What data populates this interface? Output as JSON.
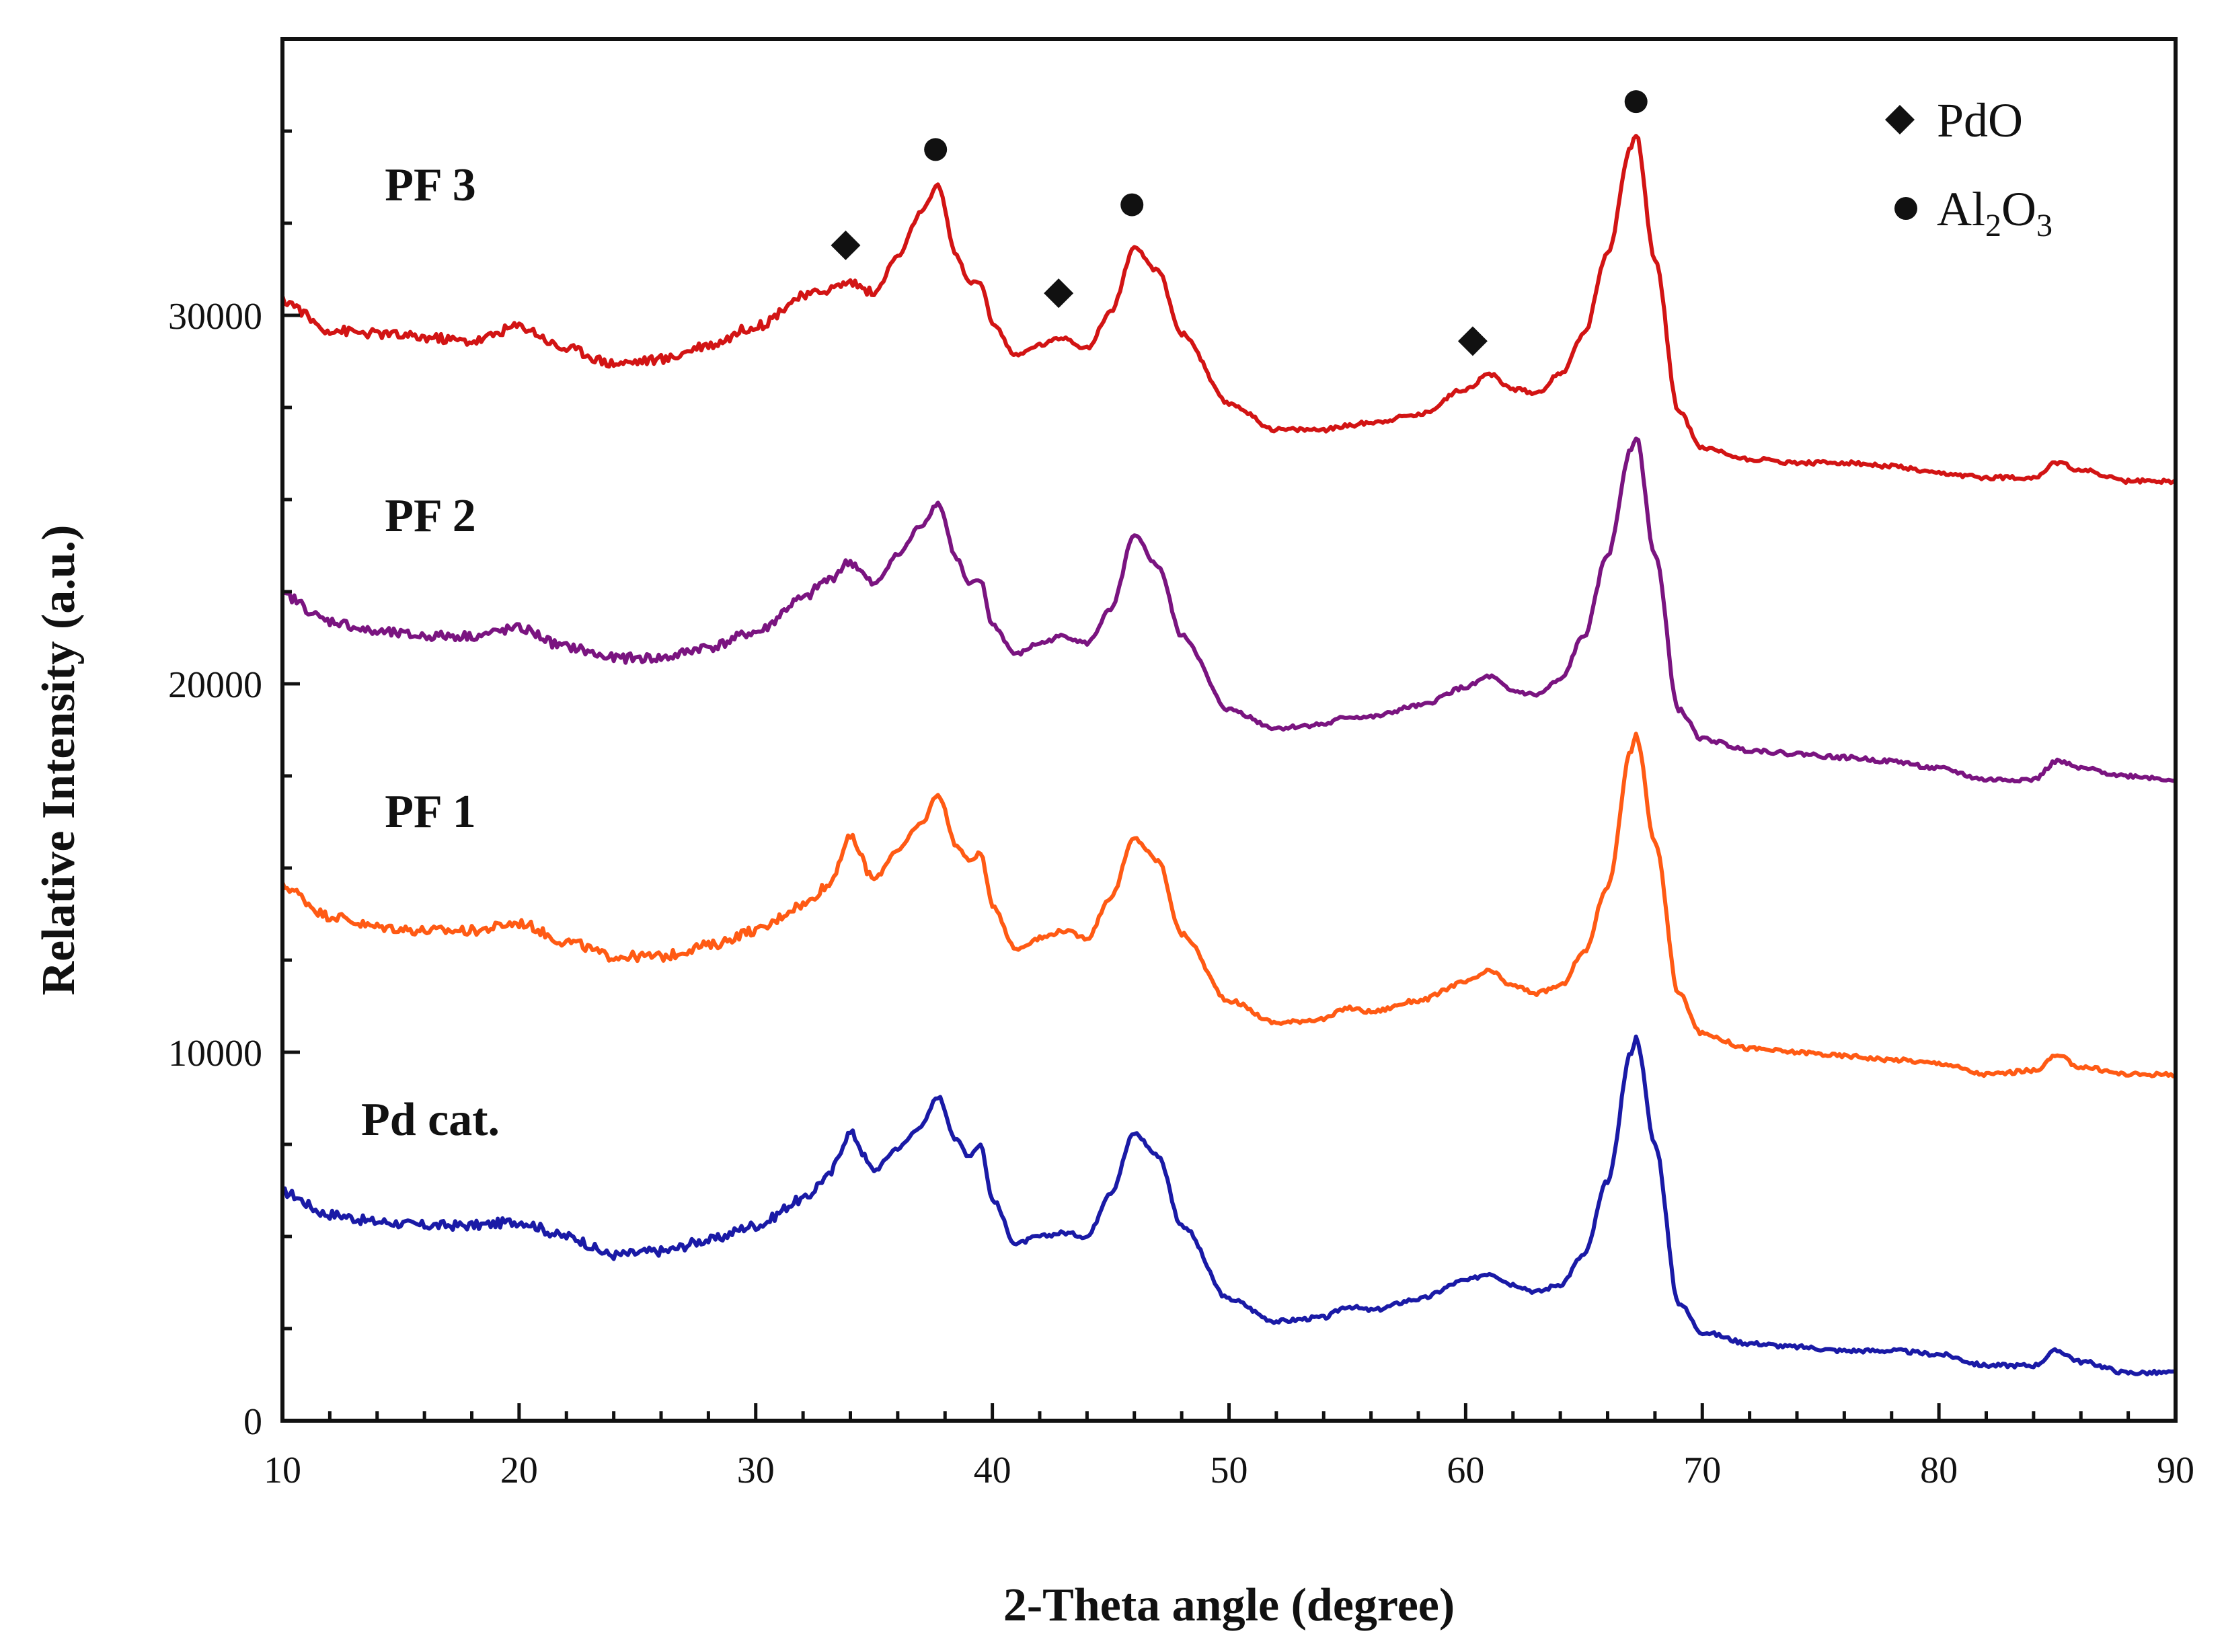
{
  "chart_data": {
    "type": "line",
    "title": "",
    "xlabel": "2-Theta angle (degree)",
    "ylabel": "Relative Intensity (a.u.)",
    "xlim": [
      10,
      90
    ],
    "ylim": [
      0,
      37500
    ],
    "xticks": [
      10,
      20,
      30,
      40,
      50,
      60,
      70,
      80,
      90
    ],
    "yticks": [
      0,
      10000,
      20000,
      30000
    ],
    "grid": false,
    "legend_position": "top-right",
    "legend": [
      {
        "marker": "diamond",
        "label": "PdO"
      },
      {
        "marker": "circle",
        "label": "Al",
        "sub1": "2",
        "mid": "O",
        "sub2": "3"
      }
    ],
    "series": [
      {
        "name": "Pd cat.",
        "color": "#1a1aa6",
        "x": [
          10,
          12,
          14,
          16,
          18,
          20,
          22,
          24,
          26,
          28,
          30,
          32,
          33,
          34,
          35,
          36,
          37,
          37.7,
          38.5,
          39,
          39.5,
          40,
          41,
          42,
          43,
          44,
          45,
          46,
          47,
          48,
          50,
          52,
          54,
          55,
          56,
          58,
          60,
          61,
          62,
          63,
          64,
          65,
          66,
          67,
          67.2,
          68,
          69,
          70,
          72,
          74,
          76,
          78,
          80,
          82,
          84,
          85,
          86,
          88,
          90
        ],
        "y": [
          6200,
          5600,
          5400,
          5300,
          5300,
          5400,
          5000,
          4500,
          4600,
          4900,
          5300,
          6000,
          6600,
          7800,
          6800,
          7400,
          8000,
          8800,
          7600,
          7200,
          7500,
          6000,
          4800,
          5000,
          5100,
          5000,
          6200,
          7800,
          7200,
          5300,
          3300,
          2700,
          2800,
          3100,
          3000,
          3300,
          3800,
          4000,
          3700,
          3500,
          3700,
          4500,
          6500,
          10000,
          10400,
          7500,
          3200,
          2400,
          2100,
          2000,
          1900,
          1900,
          1800,
          1500,
          1500,
          1900,
          1600,
          1300,
          1300
        ]
      },
      {
        "name": "PF 1",
        "color": "#ff5a14",
        "x": [
          10,
          12,
          14,
          16,
          18,
          20,
          22,
          24,
          26,
          28,
          30,
          32,
          33,
          34,
          35,
          36,
          37,
          37.7,
          38.5,
          39,
          39.5,
          40,
          41,
          42,
          43,
          44,
          45,
          46,
          47,
          48,
          50,
          52,
          54,
          55,
          56,
          58,
          60,
          61,
          62,
          63,
          64,
          65,
          66,
          67,
          67.2,
          68,
          69,
          70,
          72,
          74,
          76,
          78,
          80,
          82,
          84,
          85,
          86,
          88,
          90
        ],
        "y": [
          14500,
          13700,
          13400,
          13300,
          13300,
          13500,
          13000,
          12600,
          12600,
          12900,
          13300,
          14000,
          14500,
          15800,
          14700,
          15500,
          16200,
          17000,
          15600,
          15200,
          15400,
          14000,
          12800,
          13100,
          13300,
          13100,
          14200,
          15800,
          15200,
          13200,
          11400,
          10800,
          10900,
          11200,
          11100,
          11400,
          11900,
          12200,
          11800,
          11600,
          11800,
          12700,
          14500,
          18200,
          18600,
          15700,
          11600,
          10500,
          10100,
          10000,
          9900,
          9800,
          9700,
          9400,
          9500,
          9900,
          9600,
          9400,
          9400
        ]
      },
      {
        "name": "PF 2",
        "color": "#7a1480",
        "x": [
          10,
          12,
          14,
          16,
          18,
          20,
          22,
          24,
          26,
          28,
          30,
          32,
          33,
          34,
          35,
          36,
          37,
          37.7,
          38.5,
          39,
          39.5,
          40,
          41,
          42,
          43,
          44,
          45,
          46,
          47,
          48,
          50,
          52,
          54,
          55,
          56,
          58,
          60,
          61,
          62,
          63,
          64,
          65,
          66,
          67,
          67.2,
          68,
          69,
          70,
          72,
          74,
          76,
          78,
          80,
          82,
          84,
          85,
          86,
          88,
          90
        ],
        "y": [
          22400,
          21700,
          21400,
          21300,
          21300,
          21500,
          21000,
          20700,
          20700,
          21000,
          21400,
          22300,
          22800,
          23300,
          22700,
          23500,
          24300,
          24900,
          23400,
          22700,
          22800,
          21600,
          20800,
          21100,
          21300,
          21100,
          22000,
          24000,
          23200,
          21300,
          19300,
          18800,
          18900,
          19100,
          19100,
          19400,
          19900,
          20200,
          19800,
          19700,
          20100,
          21300,
          23500,
          26400,
          26700,
          23500,
          19300,
          18500,
          18200,
          18100,
          18000,
          17900,
          17700,
          17400,
          17400,
          17900,
          17700,
          17500,
          17400
        ]
      },
      {
        "name": "PF 3",
        "color": "#d21414",
        "x": [
          10,
          12,
          14,
          16,
          18,
          20,
          22,
          24,
          26,
          28,
          30,
          32,
          33,
          34,
          35,
          36,
          37,
          37.7,
          38.5,
          39,
          39.5,
          40,
          41,
          42,
          43,
          44,
          45,
          46,
          47,
          48,
          50,
          52,
          54,
          55,
          56,
          58,
          60,
          61,
          62,
          63,
          64,
          65,
          66,
          67,
          67.2,
          68,
          69,
          70,
          72,
          74,
          76,
          78,
          80,
          82,
          84,
          85,
          86,
          88,
          90
        ],
        "y": [
          30400,
          29600,
          29500,
          29400,
          29300,
          29700,
          29100,
          28700,
          28800,
          29200,
          29700,
          30500,
          30700,
          30900,
          30600,
          31600,
          32800,
          33500,
          31600,
          30900,
          30900,
          29800,
          28900,
          29200,
          29400,
          29100,
          30100,
          31800,
          31200,
          29500,
          27600,
          26900,
          26900,
          27000,
          27100,
          27300,
          28000,
          28400,
          28000,
          27900,
          28400,
          29500,
          31700,
          34600,
          34900,
          31500,
          27400,
          26400,
          26100,
          26000,
          26000,
          25900,
          25700,
          25600,
          25600,
          26000,
          25800,
          25500,
          25500
        ]
      }
    ],
    "peak_markers": [
      {
        "type": "diamond",
        "x": 33.8,
        "y": 31900
      },
      {
        "type": "circle",
        "x": 37.6,
        "y": 34500
      },
      {
        "type": "diamond",
        "x": 42.8,
        "y": 30600
      },
      {
        "type": "circle",
        "x": 45.9,
        "y": 33000
      },
      {
        "type": "diamond",
        "x": 60.3,
        "y": 29300
      },
      {
        "type": "circle",
        "x": 67.2,
        "y": 35800
      }
    ]
  }
}
